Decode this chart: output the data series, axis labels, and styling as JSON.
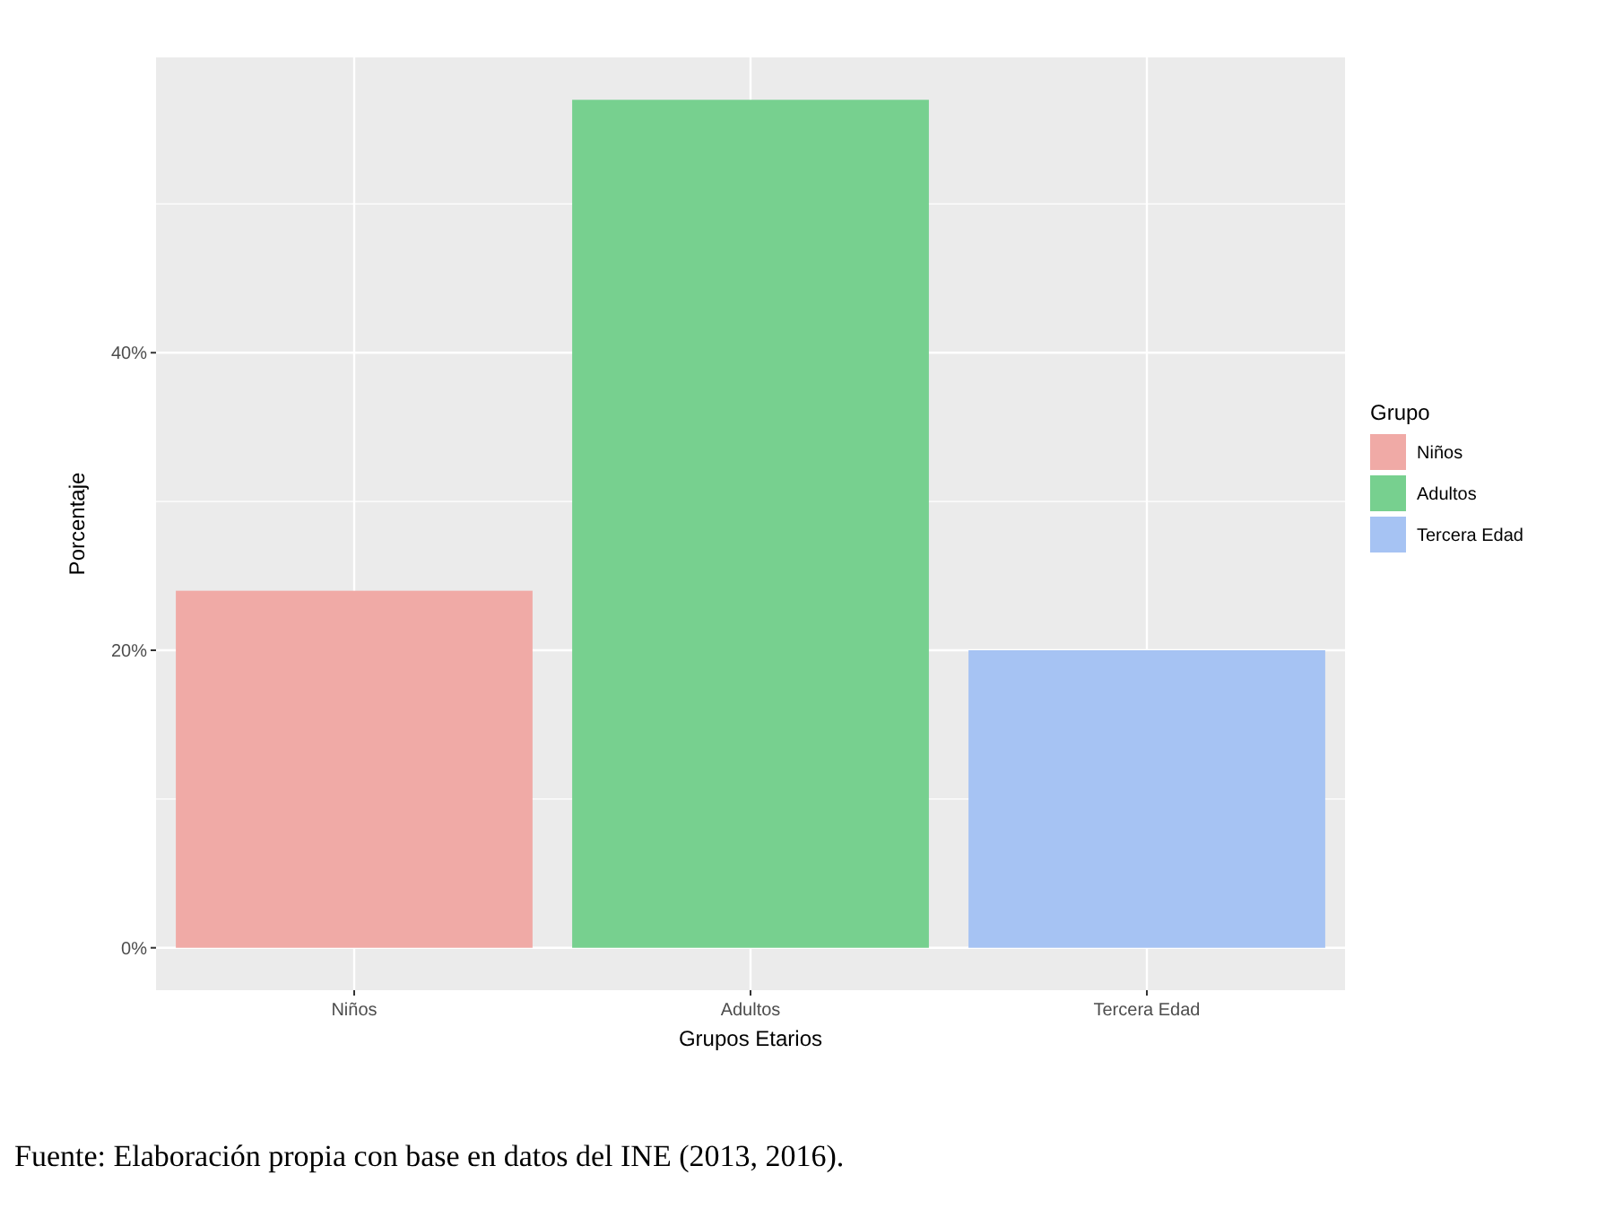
{
  "chart_data": {
    "type": "bar",
    "xlabel": "Grupos Etarios",
    "ylabel": "Porcentaje",
    "legend_title": "Grupo",
    "categories": [
      "Niños",
      "Adultos",
      "Tercera Edad"
    ],
    "series": [
      {
        "name": "Niños",
        "color": "#f0aaa6",
        "values": [
          24,
          null,
          null
        ]
      },
      {
        "name": "Adultos",
        "color": "#77d08f",
        "values": [
          null,
          57,
          null
        ]
      },
      {
        "name": "Tercera Edad",
        "color": "#a6c3f3",
        "values": [
          null,
          null,
          20
        ]
      }
    ],
    "ylim": [
      -2.85,
      59.85
    ],
    "yticks": [
      {
        "value": 0,
        "label": "0%"
      },
      {
        "value": 20,
        "label": "20%"
      },
      {
        "value": 40,
        "label": "40%"
      }
    ],
    "grid": true,
    "legend": "right",
    "annotations": [
      "Fuente: Elaboración propia con base en datos del INE (2013, 2016)."
    ]
  }
}
